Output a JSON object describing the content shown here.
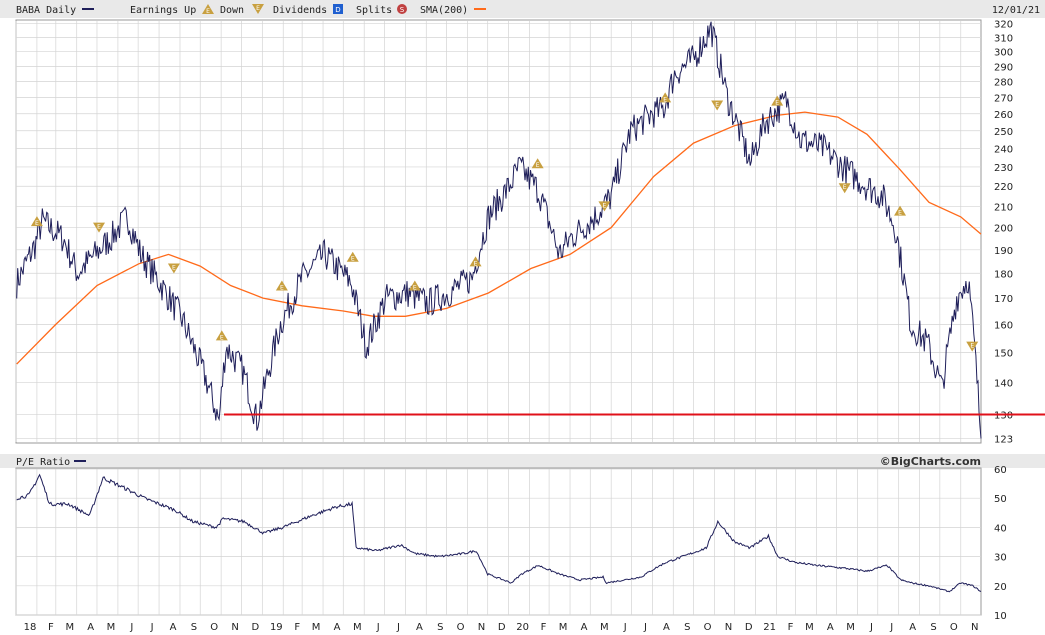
{
  "header": {
    "ticker": "BABA Daily",
    "earnings_up": "Earnings Up",
    "down": "Down",
    "dividends": "Dividends",
    "splits": "Splits",
    "sma": "SMA(200)",
    "date": "12/01/21"
  },
  "pe_panel": {
    "label": "P/E Ratio",
    "credit": "©BigCharts.com"
  },
  "colors": {
    "price": "#1f1f5a",
    "sma": "#ff6a1a",
    "support": "#e0101a",
    "marker": "#c8a040",
    "dividends": "#1f5fcf",
    "splits": "#c04040",
    "grid": "#d4d4d4",
    "panel_bg": "#e9e9e9"
  },
  "chart_data": [
    {
      "type": "line",
      "title": "BABA Daily",
      "x_tick_labels": [
        "18",
        "F",
        "M",
        "A",
        "M",
        "J",
        "J",
        "A",
        "S",
        "O",
        "N",
        "D",
        "19",
        "F",
        "M",
        "A",
        "M",
        "J",
        "J",
        "A",
        "S",
        "O",
        "N",
        "D",
        "20",
        "F",
        "M",
        "A",
        "M",
        "J",
        "J",
        "A",
        "S",
        "O",
        "N",
        "D",
        "21",
        "F",
        "M",
        "A",
        "M",
        "J",
        "J",
        "A",
        "S",
        "O",
        "N"
      ],
      "y_tick_labels": [
        "123",
        "130",
        "140",
        "150",
        "160",
        "170",
        "180",
        "190",
        "200",
        "210",
        "220",
        "230",
        "240",
        "250",
        "260",
        "270",
        "280",
        "290",
        "300",
        "310",
        "320"
      ],
      "ylim": [
        122,
        322
      ],
      "y_scale": "log",
      "x_range": [
        "2018-01-01",
        "2021-12-01"
      ],
      "grid": true,
      "series": [
        {
          "name": "BABA Daily",
          "x": [
            "2018-01-02",
            "2018-01-29",
            "2018-02-09",
            "2018-03-12",
            "2018-04-02",
            "2018-05-21",
            "2018-06-15",
            "2018-07-05",
            "2018-08-02",
            "2018-09-04",
            "2018-10-11",
            "2018-10-29",
            "2018-11-08",
            "2018-12-03",
            "2018-12-24",
            "2019-01-28",
            "2019-03-01",
            "2019-04-03",
            "2019-05-13",
            "2019-06-04",
            "2019-07-03",
            "2019-08-05",
            "2019-09-03",
            "2019-10-03",
            "2019-11-08",
            "2019-12-02",
            "2020-01-02",
            "2020-01-17",
            "2020-02-14",
            "2020-03-16",
            "2020-04-01",
            "2020-05-08",
            "2020-06-01",
            "2020-06-30",
            "2020-07-31",
            "2020-08-18",
            "2020-09-03",
            "2020-10-01",
            "2020-10-27",
            "2020-11-20",
            "2020-12-24",
            "2021-01-15",
            "2021-02-16",
            "2021-03-08",
            "2021-04-12",
            "2021-05-10",
            "2021-06-15",
            "2021-07-08",
            "2021-07-27",
            "2021-08-19",
            "2021-09-13",
            "2021-10-04",
            "2021-10-26",
            "2021-11-12",
            "2021-11-22",
            "2021-12-01"
          ],
          "values": [
            176,
            192,
            203,
            195,
            180,
            195,
            205,
            188,
            176,
            162,
            140,
            128,
            152,
            144,
            128,
            160,
            178,
            188,
            176,
            152,
            170,
            172,
            168,
            172,
            178,
            205,
            220,
            230,
            218,
            188,
            195,
            205,
            215,
            250,
            260,
            263,
            285,
            295,
            317,
            270,
            232,
            255,
            268,
            245,
            240,
            230,
            220,
            215,
            200,
            160,
            153,
            138,
            170,
            178,
            150,
            123
          ]
        },
        {
          "name": "SMA(200)",
          "x": [
            "2018-01-02",
            "2018-03-01",
            "2018-05-01",
            "2018-07-02",
            "2018-08-15",
            "2018-10-01",
            "2018-11-15",
            "2019-01-02",
            "2019-03-01",
            "2019-05-01",
            "2019-06-15",
            "2019-08-01",
            "2019-10-01",
            "2019-12-02",
            "2020-02-03",
            "2020-04-01",
            "2020-06-01",
            "2020-08-03",
            "2020-10-01",
            "2020-12-01",
            "2021-02-01",
            "2021-03-15",
            "2021-05-03",
            "2021-06-15",
            "2021-08-02",
            "2021-09-15",
            "2021-11-01",
            "2021-12-01"
          ],
          "values": [
            146,
            160,
            175,
            184,
            188,
            183,
            175,
            170,
            167,
            165,
            163,
            163,
            166,
            172,
            182,
            188,
            200,
            225,
            243,
            253,
            259,
            261,
            258,
            248,
            229,
            212,
            205,
            197
          ]
        }
      ],
      "support_level": 130,
      "earnings_events": [
        {
          "date": "2018-02-01",
          "type": "up",
          "value": 203
        },
        {
          "date": "2018-05-04",
          "type": "down",
          "value": 200
        },
        {
          "date": "2018-08-23",
          "type": "down",
          "value": 182
        },
        {
          "date": "2018-11-02",
          "type": "up",
          "value": 156
        },
        {
          "date": "2019-01-30",
          "type": "up",
          "value": 175
        },
        {
          "date": "2019-05-15",
          "type": "up",
          "value": 187
        },
        {
          "date": "2019-08-15",
          "type": "up",
          "value": 175
        },
        {
          "date": "2019-11-13",
          "type": "up",
          "value": 185
        },
        {
          "date": "2020-02-13",
          "type": "up",
          "value": 232
        },
        {
          "date": "2020-05-22",
          "type": "down",
          "value": 210
        },
        {
          "date": "2020-08-20",
          "type": "up",
          "value": 270
        },
        {
          "date": "2020-11-05",
          "type": "down",
          "value": 265
        },
        {
          "date": "2021-02-02",
          "type": "up",
          "value": 268
        },
        {
          "date": "2021-05-13",
          "type": "down",
          "value": 219
        },
        {
          "date": "2021-08-03",
          "type": "up",
          "value": 208
        },
        {
          "date": "2021-11-18",
          "type": "down",
          "value": 152
        }
      ]
    },
    {
      "type": "line",
      "title": "P/E Ratio",
      "y_tick_labels": [
        "10",
        "20",
        "30",
        "40",
        "50",
        "60"
      ],
      "ylim": [
        10,
        60
      ],
      "x_range": [
        "2018-01-01",
        "2021-12-01"
      ],
      "grid": true,
      "series": [
        {
          "name": "P/E Ratio",
          "x": [
            "2018-01-02",
            "2018-01-20",
            "2018-02-05",
            "2018-02-20",
            "2018-03-20",
            "2018-04-20",
            "2018-05-10",
            "2018-06-15",
            "2018-07-10",
            "2018-08-24",
            "2018-09-20",
            "2018-10-25",
            "2018-11-04",
            "2018-12-05",
            "2019-01-03",
            "2019-01-31",
            "2019-03-15",
            "2019-04-20",
            "2019-05-14",
            "2019-05-20",
            "2019-06-20",
            "2019-07-25",
            "2019-08-16",
            "2019-09-20",
            "2019-10-25",
            "2019-11-14",
            "2019-12-01",
            "2020-01-05",
            "2020-01-20",
            "2020-02-14",
            "2020-03-16",
            "2020-04-15",
            "2020-05-20",
            "2020-05-25",
            "2020-06-20",
            "2020-07-15",
            "2020-08-05",
            "2020-08-21",
            "2020-09-15",
            "2020-10-20",
            "2020-11-06",
            "2020-12-01",
            "2020-12-24",
            "2021-01-20",
            "2021-02-03",
            "2021-03-01",
            "2021-04-01",
            "2021-05-14",
            "2021-06-15",
            "2021-07-15",
            "2021-08-04",
            "2021-08-20",
            "2021-09-15",
            "2021-10-15",
            "2021-11-01",
            "2021-11-19",
            "2021-12-01"
          ],
          "values": [
            50,
            51,
            58,
            48,
            48,
            44,
            57,
            53,
            50,
            46,
            42,
            40,
            43,
            42,
            38,
            40,
            44,
            47,
            48,
            33,
            32,
            34,
            31,
            30,
            31,
            32,
            24,
            21,
            24,
            27,
            24,
            22,
            23,
            21,
            22,
            23,
            26,
            28,
            30,
            33,
            42,
            35,
            33,
            37,
            30,
            28,
            27,
            26,
            25,
            27,
            22,
            21,
            20,
            18,
            21,
            20,
            18
          ]
        }
      ]
    }
  ]
}
